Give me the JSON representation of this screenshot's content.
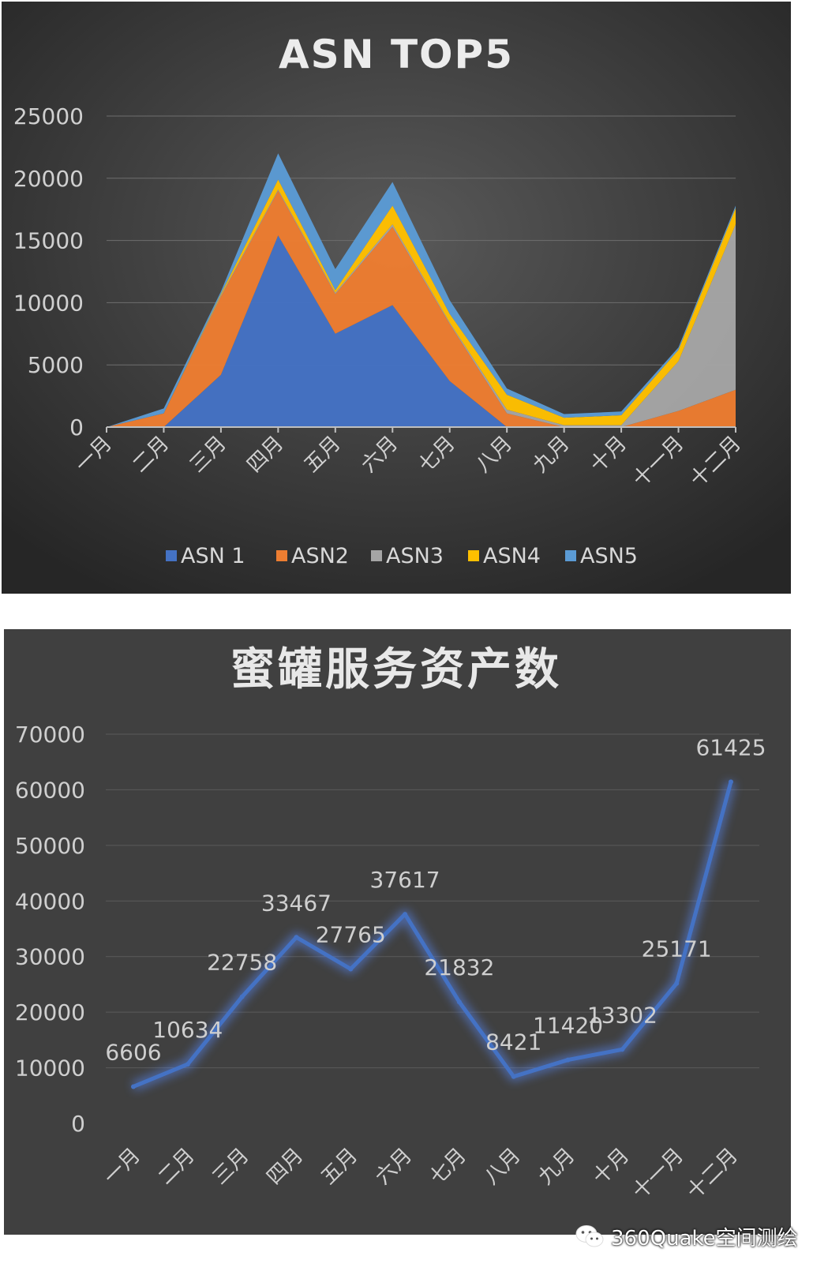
{
  "chart_data": [
    {
      "type": "area",
      "title": "ASN TOP5",
      "stacked": true,
      "categories": [
        "一月",
        "二月",
        "三月",
        "四月",
        "五月",
        "六月",
        "七月",
        "八月",
        "九月",
        "十月",
        "十一月",
        "十二月"
      ],
      "ylim": [
        0,
        25000
      ],
      "yticks": [
        0,
        5000,
        10000,
        15000,
        20000,
        25000
      ],
      "grid": true,
      "legend_position": "bottom",
      "series": [
        {
          "name": "ASN 1",
          "color": "#4472C4",
          "values": [
            0,
            0,
            4200,
            15400,
            7500,
            9800,
            3700,
            0,
            0,
            0,
            0,
            0
          ]
        },
        {
          "name": "ASN2",
          "color": "#ED7D31",
          "values": [
            0,
            1100,
            6300,
            3600,
            3200,
            6300,
            4600,
            1100,
            0,
            0,
            1300,
            3000
          ]
        },
        {
          "name": "ASN3",
          "color": "#A5A5A5",
          "values": [
            0,
            0,
            100,
            100,
            100,
            200,
            100,
            300,
            150,
            150,
            4000,
            13300
          ]
        },
        {
          "name": "ASN4",
          "color": "#FFC000",
          "values": [
            0,
            0,
            100,
            800,
            200,
            1500,
            700,
            1200,
            600,
            800,
            900,
            1300
          ]
        },
        {
          "name": "ASN5",
          "color": "#5B9BD5",
          "values": [
            0,
            400,
            200,
            2100,
            1700,
            1900,
            1100,
            500,
            300,
            300,
            200,
            200
          ]
        }
      ]
    },
    {
      "type": "line",
      "title": "蜜罐服务资产数",
      "categories": [
        "一月",
        "二月",
        "三月",
        "四月",
        "五月",
        "六月",
        "七月",
        "八月",
        "九月",
        "十月",
        "十一月",
        "十二月"
      ],
      "ylim": [
        0,
        70000
      ],
      "yticks": [
        0,
        10000,
        20000,
        30000,
        40000,
        50000,
        60000,
        70000
      ],
      "grid": true,
      "series": [
        {
          "color": "#4472C4",
          "values": [
            6606,
            10634,
            22758,
            33467,
            27765,
            37617,
            21832,
            8421,
            11420,
            13302,
            25171,
            61425
          ]
        }
      ]
    }
  ],
  "watermark": {
    "text": "360Quake空间测绘",
    "icon": "wechat-icon"
  }
}
